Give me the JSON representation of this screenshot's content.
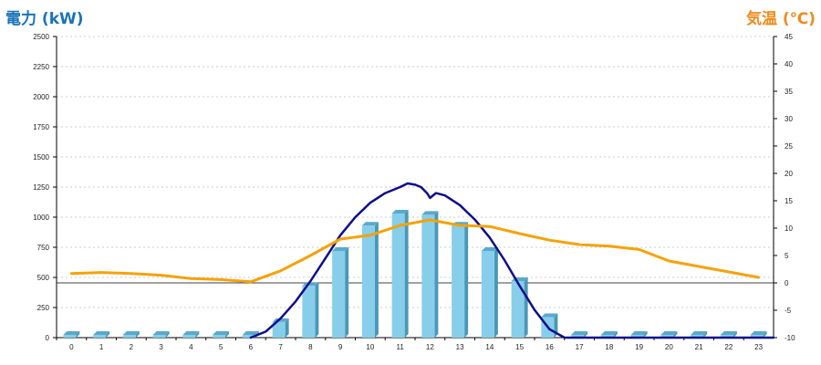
{
  "colors": {
    "left_title": "#1a73b8",
    "right_title": "#ef8a1a",
    "bar_front": "#87ceeb",
    "bar_side": "#4a98b8",
    "bar_top": "#5aa9cc",
    "power_line": "#0d0d8a",
    "temp_line": "#f5a20a",
    "grid": "#bbbbbb"
  },
  "chart_data": {
    "type": "bar",
    "title": "",
    "ylabel": "電力 (kW)",
    "y2label": "気温 (℃)",
    "categories": [
      "0",
      "1",
      "2",
      "3",
      "4",
      "5",
      "6",
      "7",
      "8",
      "9",
      "10",
      "11",
      "12",
      "13",
      "14",
      "15",
      "16",
      "17",
      "18",
      "19",
      "20",
      "21",
      "22",
      "23"
    ],
    "ylim": [
      0,
      2500
    ],
    "y2lim": [
      -10,
      45
    ],
    "y_ticks": [
      "0",
      "250",
      "500",
      "750",
      "1000",
      "1250",
      "1500",
      "1750",
      "2000",
      "2250",
      "2500"
    ],
    "y2_ticks": [
      "-10",
      "-5",
      "0",
      "5",
      "10",
      "15",
      "20",
      "25",
      "30",
      "35",
      "40",
      "45"
    ],
    "reference_line_y2": 0,
    "grid": true,
    "series": [
      {
        "kind": "bar",
        "axis": "left",
        "values": [
          0,
          0,
          0,
          0,
          0,
          0,
          0,
          130,
          430,
          720,
          930,
          1030,
          1020,
          930,
          720,
          470,
          170,
          0,
          0,
          0,
          0,
          0,
          0,
          0
        ]
      },
      {
        "kind": "line",
        "axis": "left",
        "x": [
          6,
          6.5,
          7,
          7.5,
          8,
          8.5,
          9,
          9.5,
          10,
          10.5,
          11,
          11.25,
          11.5,
          11.7,
          11.9,
          12,
          12.2,
          12.5,
          13,
          13.5,
          14,
          14.5,
          15,
          15.5,
          16,
          16.5,
          17,
          23.5
        ],
        "values": [
          0,
          50,
          160,
          300,
          470,
          660,
          850,
          1000,
          1120,
          1200,
          1250,
          1280,
          1270,
          1250,
          1200,
          1160,
          1200,
          1180,
          1100,
          980,
          830,
          640,
          430,
          230,
          70,
          0,
          0,
          0
        ]
      },
      {
        "kind": "line",
        "axis": "right",
        "x": [
          0,
          1,
          2,
          3,
          4,
          5,
          6,
          7,
          8,
          9,
          10,
          11,
          12,
          13,
          14,
          15,
          16,
          17,
          18,
          19,
          20,
          21,
          22,
          23
        ],
        "values": [
          1.7,
          1.9,
          1.7,
          1.4,
          0.8,
          0.6,
          0.2,
          2.2,
          5.0,
          8.0,
          8.7,
          10.5,
          11.5,
          10.5,
          10.3,
          9.0,
          7.8,
          7.0,
          6.7,
          6.1,
          4.0,
          3.0,
          2.0,
          1.0
        ]
      }
    ]
  }
}
